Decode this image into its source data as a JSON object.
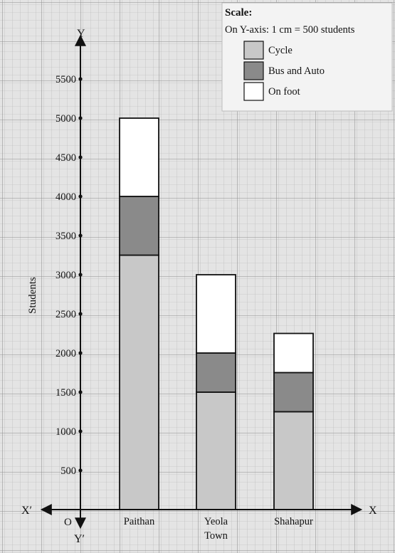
{
  "chart_data": {
    "type": "bar",
    "stacked": true,
    "categories": [
      "Paithan",
      "Yeola Town",
      "Shahapur"
    ],
    "category_labels": [
      [
        "Paithan"
      ],
      [
        "Yeola",
        "Town"
      ],
      [
        "Shahapur"
      ]
    ],
    "series": [
      {
        "name": "Cycle",
        "values": [
          3250,
          1500,
          1250
        ],
        "fill": "#c8c8c8"
      },
      {
        "name": "Bus and Auto",
        "values": [
          750,
          500,
          500
        ],
        "fill": "#8a8a8a"
      },
      {
        "name": "On foot",
        "values": [
          1000,
          1000,
          500
        ],
        "fill": "#ffffff"
      }
    ],
    "ylabel": "Students",
    "ylim": [
      0,
      5500
    ],
    "yticks": [
      500,
      1000,
      1500,
      2000,
      2500,
      3000,
      3500,
      4000,
      4500,
      5000,
      5500
    ],
    "axis_labels": {
      "x_pos": "X",
      "x_neg": "X′",
      "y_pos": "Y",
      "y_neg": "Y′",
      "origin": "O"
    },
    "legend": {
      "title": "Scale:",
      "scale_text": "On Y-axis: 1 cm = 500 students",
      "position": "top-right"
    },
    "grid": true,
    "grid_style": "graph-paper"
  }
}
